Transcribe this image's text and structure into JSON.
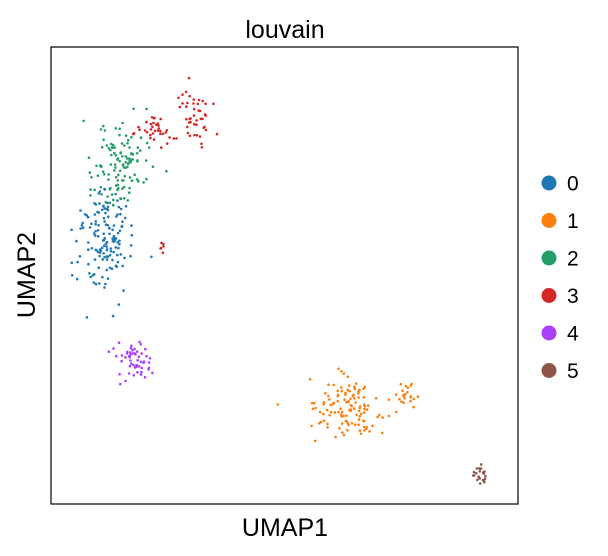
{
  "chart_data": {
    "type": "scatter",
    "title": "louvain",
    "xlabel": "UMAP1",
    "ylabel": "UMAP2",
    "xlim": [
      0,
      100
    ],
    "ylim": [
      0,
      100
    ],
    "grid": false,
    "show_ticks": false,
    "legend_position": "right",
    "series": [
      {
        "name": "0",
        "color": "#1f77b4",
        "clusters": [
          {
            "cx": 11.5,
            "cy": 56.5,
            "sx": 3.0,
            "sy": 5.2,
            "n": 130,
            "seed": 11
          },
          {
            "cx": 10.5,
            "cy": 64.0,
            "sx": 2.0,
            "sy": 2.5,
            "n": 20,
            "seed": 12
          }
        ]
      },
      {
        "name": "1",
        "color": "#ff7f0e",
        "clusters": [
          {
            "cx": 63.5,
            "cy": 21.0,
            "sx": 4.0,
            "sy": 3.4,
            "n": 120,
            "seed": 21
          },
          {
            "cx": 75.5,
            "cy": 23.0,
            "sx": 1.5,
            "sy": 1.6,
            "n": 22,
            "seed": 22
          }
        ]
      },
      {
        "name": "2",
        "color": "#279e68",
        "clusters": [
          {
            "cx": 15.0,
            "cy": 75.5,
            "sx": 3.3,
            "sy": 3.8,
            "n": 95,
            "seed": 31
          },
          {
            "cx": 12.5,
            "cy": 68.0,
            "sx": 2.3,
            "sy": 2.2,
            "n": 25,
            "seed": 32
          }
        ]
      },
      {
        "name": "3",
        "color": "#d62728",
        "clusters": [
          {
            "cx": 22.0,
            "cy": 82.0,
            "sx": 2.2,
            "sy": 2.0,
            "n": 35,
            "seed": 41
          },
          {
            "cx": 30.5,
            "cy": 85.0,
            "sx": 2.0,
            "sy": 3.8,
            "n": 45,
            "seed": 42
          },
          {
            "cx": 24.0,
            "cy": 56.0,
            "sx": 0.4,
            "sy": 1.3,
            "n": 6,
            "seed": 43
          }
        ]
      },
      {
        "name": "4",
        "color": "#aa40fc",
        "clusters": [
          {
            "cx": 18.0,
            "cy": 31.0,
            "sx": 2.0,
            "sy": 2.1,
            "n": 55,
            "seed": 51
          }
        ]
      },
      {
        "name": "5",
        "color": "#8c564b",
        "clusters": [
          {
            "cx": 92.0,
            "cy": 6.2,
            "sx": 1.0,
            "sy": 1.2,
            "n": 22,
            "seed": 61
          }
        ]
      }
    ]
  }
}
